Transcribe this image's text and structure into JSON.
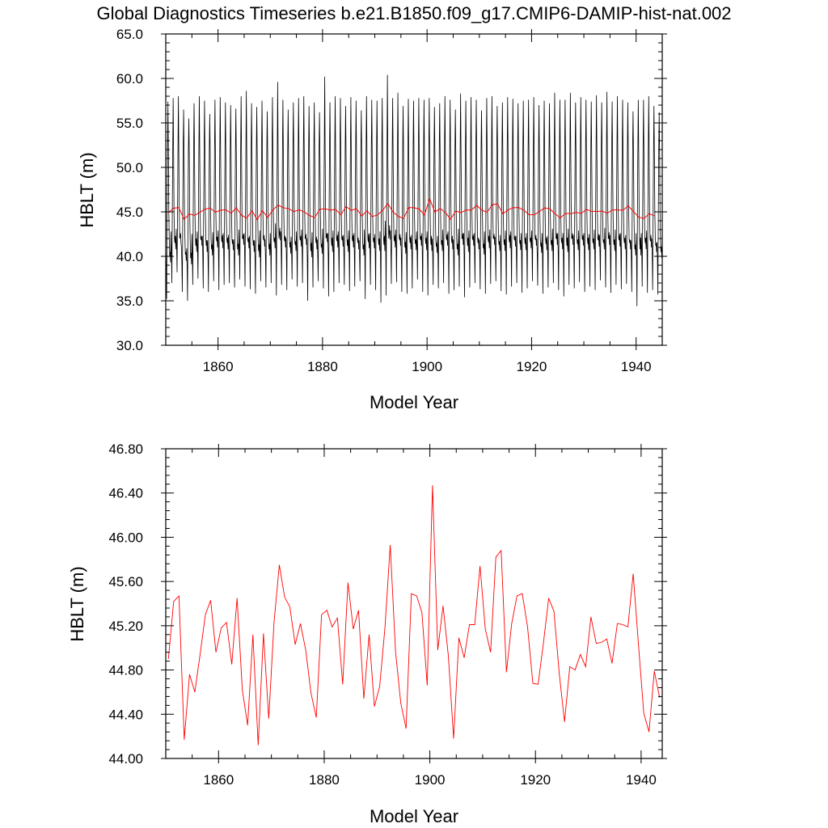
{
  "title": "Global Diagnostics Timeseries b.e21.B1850.f09_g17.CMIP6-DAMIP-hist-nat.002",
  "colors": {
    "monthly": "#000000",
    "annual": "#ff0000",
    "frame": "#000000"
  },
  "chart_data": [
    {
      "type": "line",
      "xlabel": "Model Year",
      "ylabel": "HBLT (m)",
      "xlim": [
        1850,
        1945
      ],
      "ylim": [
        30.0,
        65.0
      ],
      "xticks": [
        1860,
        1880,
        1900,
        1920,
        1940
      ],
      "xtick_labels": [
        "1860",
        "1880",
        "1900",
        "1920",
        "1940"
      ],
      "yticks": [
        30,
        35,
        40,
        45,
        50,
        55,
        60,
        65
      ],
      "ytick_labels": [
        "30.0",
        "35.0",
        "40.0",
        "45.0",
        "50.0",
        "55.0",
        "60.0",
        "65.0"
      ],
      "grid": false,
      "series": [
        {
          "kind": "monthly",
          "x_start": 1850.0,
          "x_step": 0.083333,
          "annual_peaks": [
            57.4,
            57.8,
            58.0,
            56.5,
            55.5,
            57.2,
            58.0,
            57.5,
            56.0,
            57.6,
            57.9,
            57.3,
            57.0,
            56.6,
            58.0,
            58.6,
            57.2,
            56.8,
            57.5,
            56.3,
            57.9,
            59.6,
            57.6,
            56.5,
            57.3,
            57.8,
            58.0,
            56.9,
            57.3,
            56.2,
            60.2,
            57.3,
            58.0,
            57.8,
            56.9,
            57.9,
            57.5,
            56.4,
            58.0,
            57.6,
            57.5,
            57.8,
            60.4,
            57.8,
            58.4,
            56.9,
            57.7,
            57.5,
            57.8,
            57.6,
            57.8,
            56.8,
            57.2,
            58.0,
            57.6,
            56.5,
            58.3,
            57.5,
            57.9,
            57.6,
            56.4,
            57.8,
            58.0,
            56.9,
            57.3,
            57.9,
            57.7,
            57.2,
            57.5,
            57.6,
            57.9,
            57.0,
            57.5,
            57.2,
            58.4,
            57.6,
            57.6,
            58.4,
            57.3,
            57.9,
            57.6,
            57.4,
            58.1,
            57.3,
            58.5,
            57.4,
            58.0,
            57.6,
            57.3,
            56.3,
            57.6,
            57.6,
            58.0,
            56.9,
            56.2
          ],
          "annual_troughs": [
            35.2,
            37.0,
            38.2,
            36.0,
            35.0,
            36.8,
            37.5,
            36.4,
            36.0,
            37.2,
            36.2,
            36.8,
            37.0,
            36.5,
            37.4,
            36.6,
            36.3,
            35.8,
            37.2,
            36.5,
            37.0,
            35.6,
            36.8,
            36.2,
            37.4,
            36.6,
            37.0,
            35.0,
            36.5,
            37.2,
            36.4,
            35.5,
            36.0,
            37.0,
            36.8,
            36.1,
            36.6,
            37.2,
            35.2,
            36.8,
            36.2,
            34.8,
            35.6,
            36.9,
            37.1,
            36.0,
            35.8,
            36.4,
            37.4,
            36.0,
            35.6,
            36.8,
            36.4,
            37.0,
            35.8,
            36.2,
            36.6,
            35.4,
            36.5,
            37.0,
            36.3,
            35.8,
            36.9,
            37.2,
            36.1,
            35.7,
            36.6,
            37.0,
            35.9,
            36.4,
            37.2,
            36.7,
            35.8,
            36.5,
            37.0,
            36.2,
            35.5,
            36.8,
            36.4,
            37.1,
            36.0,
            36.6,
            36.2,
            37.3,
            36.5,
            35.9,
            36.8,
            36.3,
            36.9,
            36.0,
            34.4,
            36.6,
            35.9,
            36.2,
            35.7
          ],
          "annual_secondary": [
            41.0,
            42.8,
            43.1,
            41.0,
            40.9,
            42.5,
            42.8,
            42.3,
            41.8,
            42.7,
            42.9,
            42.6,
            42.4,
            41.9,
            43.0,
            42.6,
            42.3,
            41.8,
            42.9,
            41.9,
            42.6,
            43.7,
            42.8,
            42.1,
            42.2,
            42.8,
            43.0,
            42.0,
            42.7,
            41.9,
            43.1,
            42.6,
            42.9,
            42.8,
            42.4,
            42.9,
            42.6,
            41.8,
            43.0,
            42.6,
            42.5,
            42.8,
            44.0,
            42.9,
            43.0,
            42.1,
            42.7,
            42.4,
            42.8,
            42.6,
            42.8,
            42.0,
            42.3,
            43.0,
            42.8,
            41.9,
            43.1,
            42.6,
            42.9,
            42.6,
            41.9,
            42.8,
            43.0,
            42.2,
            42.4,
            42.9,
            42.8,
            42.3,
            42.6,
            42.6,
            42.9,
            42.0,
            42.6,
            42.3,
            43.1,
            42.6,
            42.6,
            43.1,
            42.4,
            42.9,
            42.6,
            42.5,
            43.0,
            42.4,
            43.2,
            42.4,
            43.0,
            42.6,
            42.4,
            41.8,
            42.6,
            42.6,
            42.9,
            42.0,
            41.6
          ],
          "annual_secondary_low": [
            39.0,
            40.5,
            41.2,
            39.2,
            38.8,
            40.2,
            40.9,
            40.2,
            39.8,
            40.7,
            40.6,
            40.5,
            40.4,
            39.8,
            41.0,
            40.6,
            40.2,
            39.6,
            40.8,
            39.8,
            40.6,
            41.5,
            40.7,
            40.0,
            40.3,
            40.8,
            41.0,
            39.6,
            40.5,
            40.0,
            41.3,
            40.2,
            40.7,
            40.8,
            40.2,
            40.7,
            40.5,
            39.8,
            40.6,
            40.6,
            40.3,
            40.3,
            41.6,
            40.7,
            40.9,
            40.0,
            40.5,
            40.4,
            40.9,
            40.4,
            40.3,
            40.1,
            40.3,
            40.9,
            40.5,
            39.8,
            41.0,
            40.2,
            40.9,
            40.5,
            39.9,
            40.6,
            41.0,
            40.3,
            40.3,
            40.6,
            40.8,
            40.4,
            40.4,
            40.6,
            40.9,
            40.1,
            40.4,
            40.3,
            41.0,
            40.5,
            40.2,
            41.0,
            40.4,
            40.9,
            40.4,
            40.5,
            40.8,
            40.5,
            41.0,
            40.3,
            40.8,
            40.5,
            40.5,
            39.8,
            39.8,
            40.5,
            40.7,
            40.2,
            39.5
          ]
        },
        {
          "kind": "annual",
          "x_start": 1850.5,
          "x_step": 1.0,
          "values": [
            44.9,
            45.42,
            45.47,
            44.17,
            44.76,
            44.6,
            44.94,
            45.3,
            45.43,
            44.96,
            45.18,
            45.23,
            44.85,
            45.45,
            44.62,
            44.3,
            45.12,
            44.12,
            45.13,
            44.36,
            45.23,
            45.75,
            45.46,
            45.37,
            45.03,
            45.22,
            44.98,
            44.59,
            44.37,
            45.3,
            45.34,
            45.19,
            45.27,
            44.67,
            45.59,
            45.17,
            45.34,
            44.54,
            45.12,
            44.47,
            44.65,
            45.18,
            45.93,
            44.97,
            44.5,
            44.27,
            45.49,
            45.47,
            45.32,
            44.66,
            46.47,
            44.98,
            45.38,
            44.93,
            44.18,
            45.09,
            44.91,
            45.21,
            45.21,
            45.74,
            45.17,
            44.96,
            45.82,
            45.88,
            44.78,
            45.22,
            45.47,
            45.49,
            45.19,
            44.68,
            44.67,
            45.04,
            45.45,
            45.33,
            44.77,
            44.33,
            44.83,
            44.8,
            44.94,
            44.83,
            45.28,
            45.04,
            45.05,
            45.08,
            44.86,
            45.22,
            45.21,
            45.19,
            45.67,
            45.03,
            44.41,
            44.24,
            44.79,
            44.55
          ]
        }
      ]
    },
    {
      "type": "line",
      "xlabel": "Model Year",
      "ylabel": "HBLT (m)",
      "xlim": [
        1850,
        1944
      ],
      "ylim": [
        44.0,
        46.8
      ],
      "xticks": [
        1860,
        1880,
        1900,
        1920,
        1940
      ],
      "xtick_labels": [
        "1860",
        "1880",
        "1900",
        "1920",
        "1940"
      ],
      "yticks": [
        44.0,
        44.4,
        44.8,
        45.2,
        45.6,
        46.0,
        46.4,
        46.8
      ],
      "ytick_labels": [
        "44.00",
        "44.40",
        "44.80",
        "45.20",
        "45.60",
        "46.00",
        "46.40",
        "46.80"
      ],
      "grid": false,
      "series": [
        {
          "kind": "annual",
          "ref": "same as top panel annual series"
        }
      ]
    }
  ]
}
